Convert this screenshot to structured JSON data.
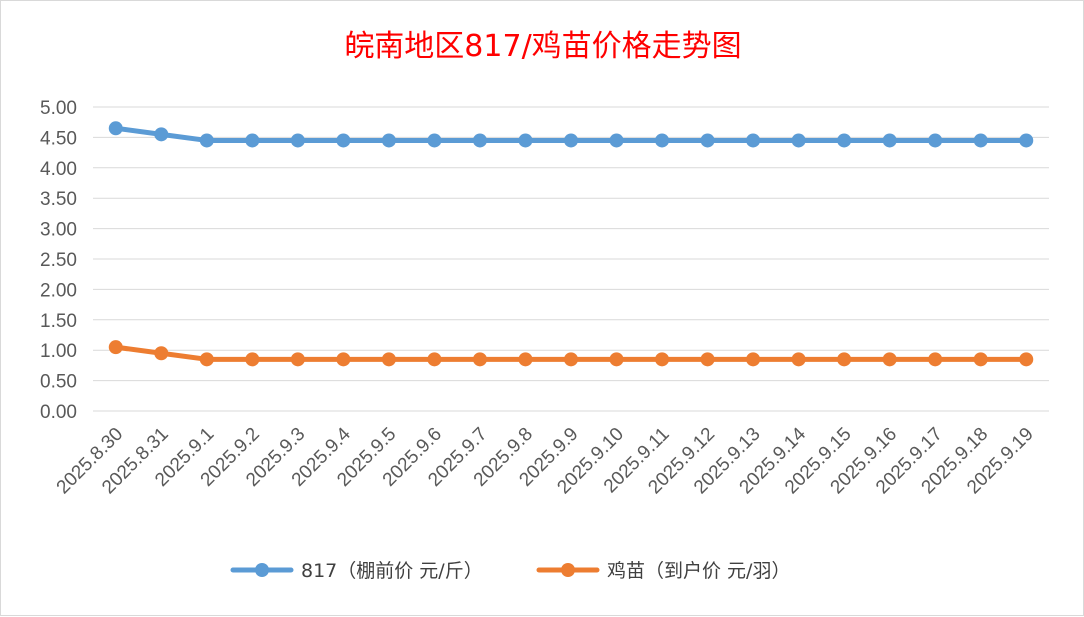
{
  "chart_data": {
    "type": "line",
    "title": "皖南地区817/鸡苗价格走势图",
    "xlabel": "",
    "ylabel": "",
    "ylim": [
      0,
      5
    ],
    "y_ticks": [
      "0.00",
      "0.50",
      "1.00",
      "1.50",
      "2.00",
      "2.50",
      "3.00",
      "3.50",
      "4.00",
      "4.50",
      "5.00"
    ],
    "grid": true,
    "legend_position": "bottom",
    "categories": [
      "2025.8.30",
      "2025.8.31",
      "2025.9.1",
      "2025.9.2",
      "2025.9.3",
      "2025.9.4",
      "2025.9.5",
      "2025.9.6",
      "2025.9.7",
      "2025.9.8",
      "2025.9.9",
      "2025.9.10",
      "2025.9.11",
      "2025.9.12",
      "2025.9.13",
      "2025.9.14",
      "2025.9.15",
      "2025.9.16",
      "2025.9.17",
      "2025.9.18",
      "2025.9.19"
    ],
    "series": [
      {
        "name": "817（棚前价 元/斤）",
        "color": "#5b9bd5",
        "values": [
          4.65,
          4.55,
          4.45,
          4.45,
          4.45,
          4.45,
          4.45,
          4.45,
          4.45,
          4.45,
          4.45,
          4.45,
          4.45,
          4.45,
          4.45,
          4.45,
          4.45,
          4.45,
          4.45,
          4.45,
          4.45
        ]
      },
      {
        "name": "鸡苗（到户价 元/羽）",
        "color": "#ed7d31",
        "values": [
          1.05,
          0.95,
          0.85,
          0.85,
          0.85,
          0.85,
          0.85,
          0.85,
          0.85,
          0.85,
          0.85,
          0.85,
          0.85,
          0.85,
          0.85,
          0.85,
          0.85,
          0.85,
          0.85,
          0.85,
          0.85
        ]
      }
    ]
  }
}
